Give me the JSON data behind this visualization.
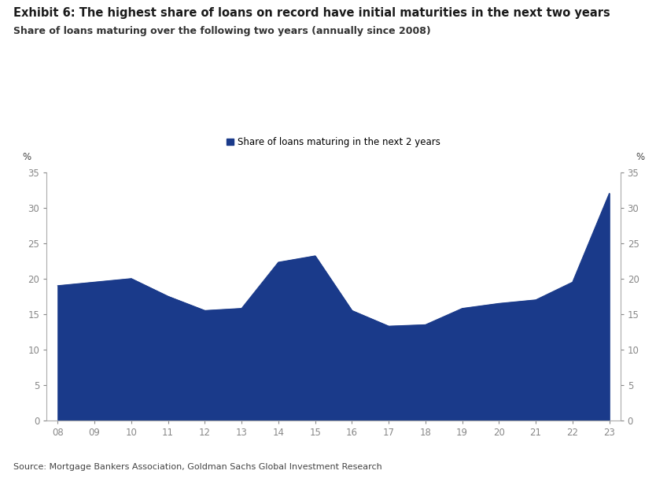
{
  "title": "Exhibit 6: The highest share of loans on record have initial maturities in the next two years",
  "subtitle": "Share of loans maturing over the following two years (annually since 2008)",
  "source": "Source: Mortgage Bankers Association, Goldman Sachs Global Investment Research",
  "legend_label": "Share of loans maturing in the next 2 years",
  "x_labels": [
    "08",
    "09",
    "10",
    "11",
    "12",
    "13",
    "14",
    "15",
    "16",
    "17",
    "18",
    "19",
    "20",
    "21",
    "22",
    "23"
  ],
  "x_values": [
    2008,
    2009,
    2010,
    2011,
    2012,
    2013,
    2014,
    2015,
    2016,
    2017,
    2018,
    2019,
    2020,
    2021,
    2022,
    2023
  ],
  "y_values": [
    19.0,
    19.5,
    20.0,
    17.5,
    15.5,
    15.8,
    22.3,
    23.2,
    15.5,
    13.3,
    13.5,
    15.8,
    16.5,
    17.0,
    19.5,
    32.0
  ],
  "fill_color": "#1a3a8a",
  "line_color": "#1a3a8a",
  "background_color": "#ffffff",
  "ylabel_left": "%",
  "ylabel_right": "%",
  "ylim": [
    0,
    35
  ],
  "yticks": [
    0,
    5,
    10,
    15,
    20,
    25,
    30,
    35
  ],
  "title_fontsize": 10.5,
  "subtitle_fontsize": 9,
  "axis_fontsize": 8.5,
  "source_fontsize": 8,
  "tick_color": "#888888",
  "spine_color": "#aaaaaa"
}
